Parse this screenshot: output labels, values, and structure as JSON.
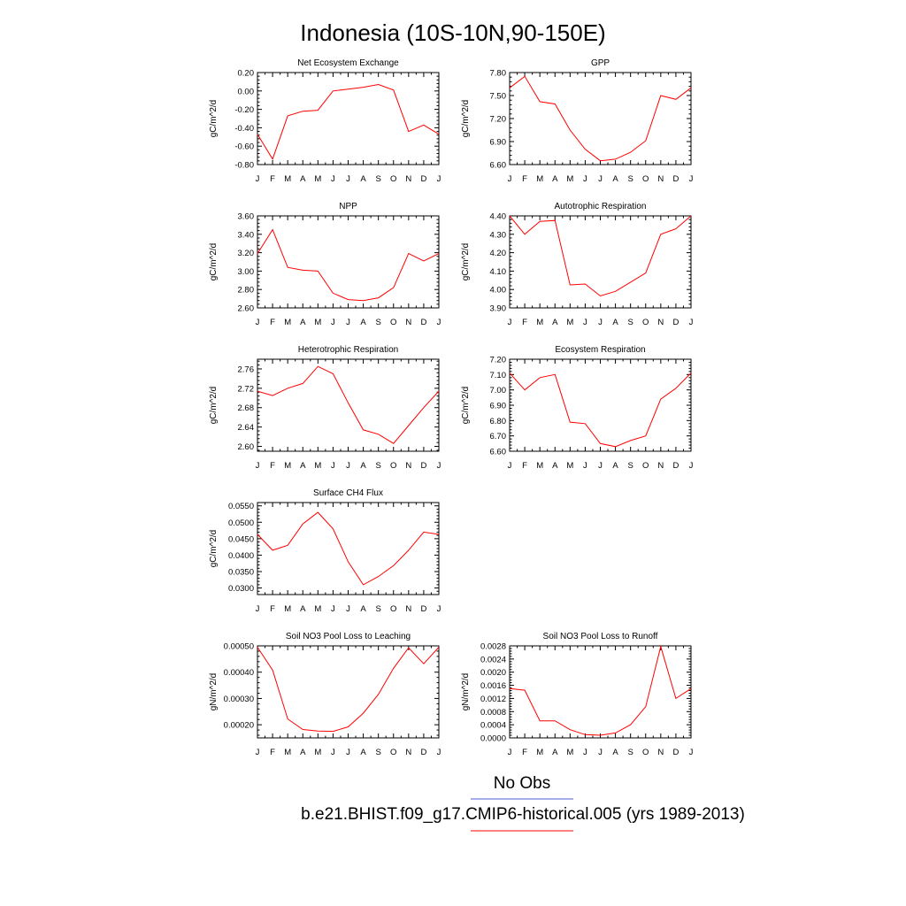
{
  "figure": {
    "title": "Indonesia (10S-10N,90-150E)",
    "colors": {
      "series": "#ff0000",
      "obs": "#4b5bd6",
      "axes": "#000000"
    }
  },
  "legend": {
    "entries": [
      {
        "label": "No Obs",
        "color": "#4b5bd6"
      },
      {
        "label": "b.e21.BHIST.f09_g17.CMIP6-historical.005 (yrs 1989-2013)",
        "color": "#ff0000"
      }
    ]
  },
  "chart_data": [
    {
      "type": "line",
      "title": "Net Ecosystem Exchange",
      "ylabel": "gC/m^2/d",
      "categories": [
        "J",
        "F",
        "M",
        "A",
        "M",
        "J",
        "J",
        "A",
        "S",
        "O",
        "N",
        "D",
        "J"
      ],
      "ylim": [
        -0.8,
        0.2
      ],
      "yticks": [
        -0.8,
        -0.6,
        -0.4,
        -0.2,
        0.0,
        0.2
      ],
      "ytick_labels": [
        "-0.80",
        "-0.60",
        "-0.40",
        "-0.20",
        "0.00",
        "0.20"
      ],
      "series": [
        {
          "values": [
            -0.47,
            -0.74,
            -0.27,
            -0.22,
            -0.21,
            0.0,
            0.02,
            0.04,
            0.07,
            0.01,
            -0.44,
            -0.37,
            -0.47
          ]
        }
      ]
    },
    {
      "type": "line",
      "title": "GPP",
      "ylabel": "gC/m^2/d",
      "categories": [
        "J",
        "F",
        "M",
        "A",
        "M",
        "J",
        "J",
        "A",
        "S",
        "O",
        "N",
        "D",
        "J"
      ],
      "ylim": [
        6.6,
        7.8
      ],
      "yticks": [
        6.6,
        6.9,
        7.2,
        7.5,
        7.8
      ],
      "ytick_labels": [
        "6.60",
        "6.90",
        "7.20",
        "7.50",
        "7.80"
      ],
      "series": [
        {
          "values": [
            7.6,
            7.75,
            7.42,
            7.39,
            7.05,
            6.8,
            6.65,
            6.67,
            6.76,
            6.91,
            7.5,
            7.45,
            7.6
          ]
        }
      ]
    },
    {
      "type": "line",
      "title": "NPP",
      "ylabel": "gC/m^2/d",
      "categories": [
        "J",
        "F",
        "M",
        "A",
        "M",
        "J",
        "J",
        "A",
        "S",
        "O",
        "N",
        "D",
        "J"
      ],
      "ylim": [
        2.6,
        3.6
      ],
      "yticks": [
        2.6,
        2.8,
        3.0,
        3.2,
        3.4,
        3.6
      ],
      "ytick_labels": [
        "2.60",
        "2.80",
        "3.00",
        "3.20",
        "3.40",
        "3.60"
      ],
      "series": [
        {
          "values": [
            3.19,
            3.45,
            3.04,
            3.01,
            3.0,
            2.76,
            2.69,
            2.68,
            2.71,
            2.82,
            3.19,
            3.11,
            3.19
          ]
        }
      ]
    },
    {
      "type": "line",
      "title": "Autotrophic Respiration",
      "ylabel": "gC/m^2/d",
      "categories": [
        "J",
        "F",
        "M",
        "A",
        "M",
        "J",
        "J",
        "A",
        "S",
        "O",
        "N",
        "D",
        "J"
      ],
      "ylim": [
        3.9,
        4.4
      ],
      "yticks": [
        3.9,
        4.0,
        4.1,
        4.2,
        4.3,
        4.4
      ],
      "ytick_labels": [
        "3.90",
        "4.00",
        "4.10",
        "4.20",
        "4.30",
        "4.40"
      ],
      "series": [
        {
          "values": [
            4.4,
            4.3,
            4.37,
            4.375,
            4.025,
            4.03,
            3.965,
            3.99,
            4.04,
            4.09,
            4.3,
            4.33,
            4.4
          ]
        }
      ]
    },
    {
      "type": "line",
      "title": "Heterotrophic Respiration",
      "ylabel": "gC/m^2/d",
      "categories": [
        "J",
        "F",
        "M",
        "A",
        "M",
        "J",
        "J",
        "A",
        "S",
        "O",
        "N",
        "D",
        "J"
      ],
      "ylim": [
        2.59,
        2.78
      ],
      "yticks": [
        2.6,
        2.64,
        2.68,
        2.72,
        2.76
      ],
      "ytick_labels": [
        "2.60",
        "2.64",
        "2.68",
        "2.72",
        "2.76"
      ],
      "series": [
        {
          "values": [
            2.714,
            2.705,
            2.72,
            2.73,
            2.765,
            2.75,
            2.69,
            2.634,
            2.625,
            2.606,
            2.643,
            2.68,
            2.714
          ]
        }
      ]
    },
    {
      "type": "line",
      "title": "Ecosystem Respiration",
      "ylabel": "gC/m^2/d",
      "categories": [
        "J",
        "F",
        "M",
        "A",
        "M",
        "J",
        "J",
        "A",
        "S",
        "O",
        "N",
        "D",
        "J"
      ],
      "ylim": [
        6.6,
        7.2
      ],
      "yticks": [
        6.6,
        6.7,
        6.8,
        6.9,
        7.0,
        7.1,
        7.2
      ],
      "ytick_labels": [
        "6.60",
        "6.70",
        "6.80",
        "6.90",
        "7.00",
        "7.10",
        "7.20"
      ],
      "series": [
        {
          "values": [
            7.11,
            7.0,
            7.08,
            7.1,
            6.79,
            6.78,
            6.65,
            6.63,
            6.67,
            6.7,
            6.94,
            7.01,
            7.11
          ]
        }
      ]
    },
    {
      "type": "line",
      "title": "Surface CH4 Flux",
      "ylabel": "gC/m^2/d",
      "categories": [
        "J",
        "F",
        "M",
        "A",
        "M",
        "J",
        "J",
        "A",
        "S",
        "O",
        "N",
        "D",
        "J"
      ],
      "ylim": [
        0.028,
        0.056
      ],
      "yticks": [
        0.03,
        0.035,
        0.04,
        0.045,
        0.05,
        0.055
      ],
      "ytick_labels": [
        "0.0300",
        "0.0350",
        "0.0400",
        "0.0450",
        "0.0500",
        "0.0550"
      ],
      "series": [
        {
          "values": [
            0.0463,
            0.0415,
            0.043,
            0.0495,
            0.053,
            0.048,
            0.038,
            0.031,
            0.0335,
            0.0368,
            0.0415,
            0.047,
            0.0463
          ]
        }
      ]
    },
    {
      "type": "line",
      "title": "Soil NO3 Pool Loss to Leaching",
      "ylabel": "gN/m^2/d",
      "categories": [
        "J",
        "F",
        "M",
        "A",
        "M",
        "J",
        "J",
        "A",
        "S",
        "O",
        "N",
        "D",
        "J"
      ],
      "ylim": [
        0.00015,
        0.0005
      ],
      "yticks": [
        0.0002,
        0.0003,
        0.0004,
        0.0005
      ],
      "ytick_labels": [
        "0.00020",
        "0.00030",
        "0.00040",
        "0.00050"
      ],
      "series": [
        {
          "values": [
            0.000495,
            0.000408,
            0.000222,
            0.000182,
            0.000176,
            0.000175,
            0.000192,
            0.000244,
            0.000316,
            0.000415,
            0.000493,
            0.000432,
            0.000495
          ]
        }
      ]
    },
    {
      "type": "line",
      "title": "Soil NO3 Pool Loss to Runoff",
      "ylabel": "gN/m^2/d",
      "categories": [
        "J",
        "F",
        "M",
        "A",
        "M",
        "J",
        "J",
        "A",
        "S",
        "O",
        "N",
        "D",
        "J"
      ],
      "ylim": [
        0,
        0.0028
      ],
      "yticks": [
        0,
        0.0004,
        0.0008,
        0.0012,
        0.0016,
        0.002,
        0.0024,
        0.0028
      ],
      "ytick_labels": [
        "0.0000",
        "0.0004",
        "0.0008",
        "0.0012",
        "0.0016",
        "0.0020",
        "0.0024",
        "0.0028"
      ],
      "series": [
        {
          "values": [
            0.0015,
            0.00145,
            0.00052,
            0.00052,
            0.00025,
            0.0001,
            8e-05,
            0.00015,
            0.0004,
            0.00095,
            0.00278,
            0.0012,
            0.0015
          ]
        }
      ]
    }
  ]
}
